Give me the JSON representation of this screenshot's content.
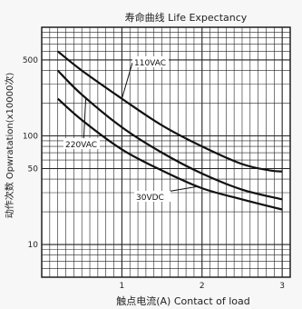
{
  "chart_data": {
    "type": "line",
    "title": "寿命曲线 Life Expectancy",
    "xlabel": "触点电流(A) Contact of load",
    "ylabel": "动作次数 Opwratation(x10000次)",
    "x_scale": "linear",
    "y_scale": "log",
    "xlim": [
      0,
      3.1
    ],
    "ylim": [
      5,
      1000
    ],
    "x_ticks": [
      1,
      2,
      3
    ],
    "y_ticks": [
      10,
      50,
      100,
      500
    ],
    "grid": true,
    "series": [
      {
        "name": "110VAC",
        "x": [
          0.2,
          0.5,
          1.0,
          1.5,
          2.0,
          2.5,
          2.85,
          3.0
        ],
        "y": [
          600,
          400,
          220,
          125,
          80,
          55,
          48,
          47
        ]
      },
      {
        "name": "220VAC",
        "x": [
          0.2,
          0.5,
          1.0,
          1.5,
          2.0,
          2.5,
          3.0
        ],
        "y": [
          400,
          240,
          120,
          70,
          45,
          32,
          26
        ]
      },
      {
        "name": "30VDC",
        "x": [
          0.2,
          0.5,
          1.0,
          1.5,
          2.0,
          2.5,
          3.0
        ],
        "y": [
          220,
          140,
          75,
          48,
          33,
          26,
          21
        ]
      }
    ]
  }
}
